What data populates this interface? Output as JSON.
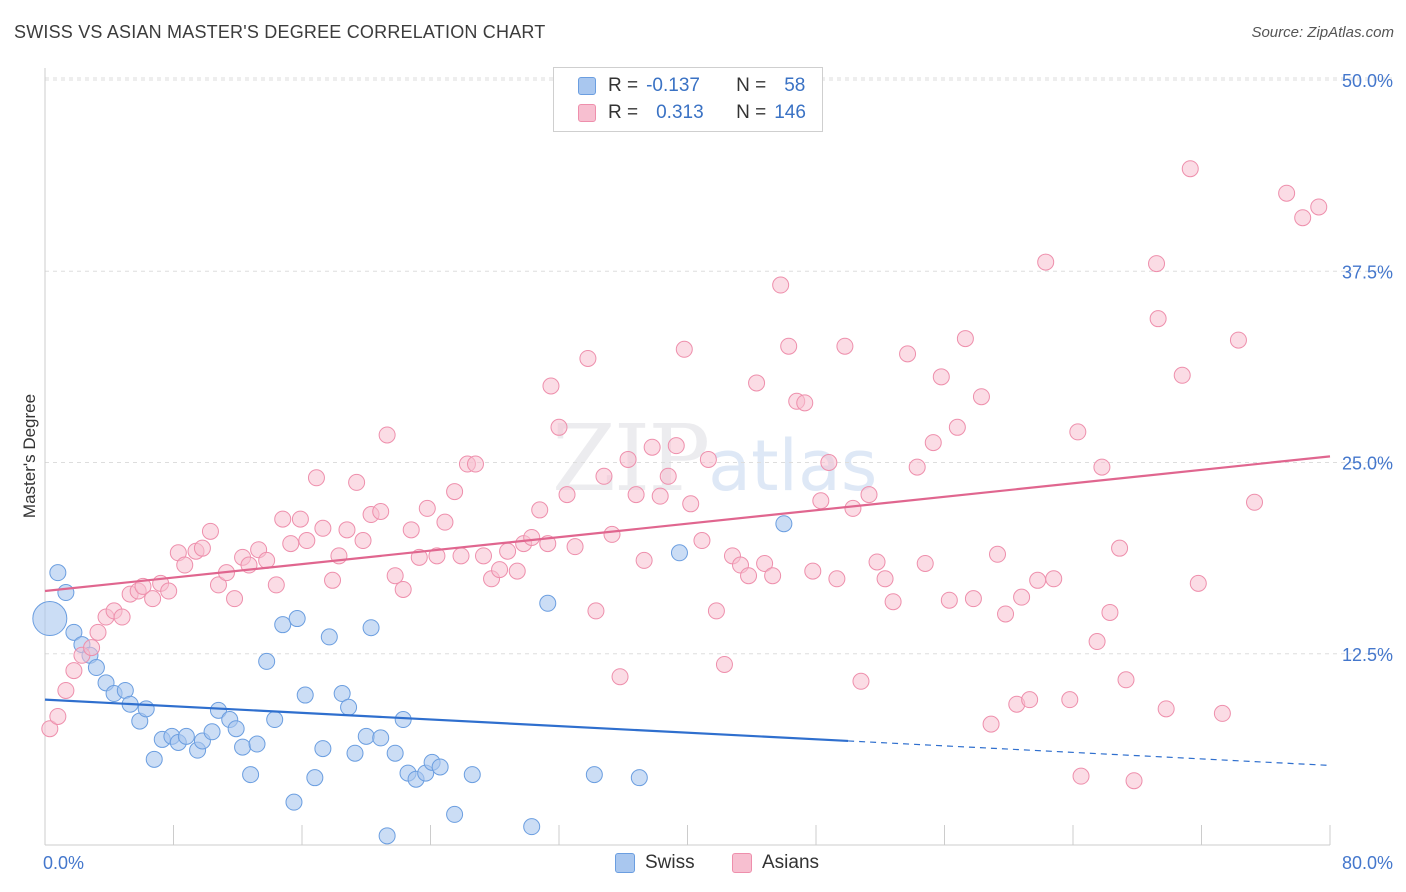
{
  "title": "SWISS VS ASIAN MASTER'S DEGREE CORRELATION CHART",
  "source": "Source: ZipAtlas.com",
  "watermark": {
    "zip": "ZIP",
    "atlas": "atlas"
  },
  "colors": {
    "swiss_fill": "#a9c7ef",
    "swiss_stroke": "#6b9ee0",
    "swiss_line": "#2f6fce",
    "asian_fill": "#f7bfd0",
    "asian_stroke": "#ee8fac",
    "asian_line": "#e0668f",
    "tick": "#4477cc",
    "grid": "#dddddd"
  },
  "legend": {
    "rows": [
      {
        "r_label": "R =",
        "r_value": "-0.137",
        "n_label": "N =",
        "n_value": "58"
      },
      {
        "r_label": "R =",
        "r_value": "0.313",
        "n_label": "N =",
        "n_value": "146"
      }
    ]
  },
  "bottom_legend": {
    "swiss": "Swiss",
    "asians": "Asians"
  },
  "chart_data": {
    "type": "scatter",
    "title": "SWISS VS ASIAN MASTER'S DEGREE CORRELATION CHART",
    "xlabel": "",
    "ylabel": "Master's Degree",
    "xlim": [
      0,
      80
    ],
    "ylim": [
      0,
      50
    ],
    "x_tick_labels": [
      "0.0%",
      "80.0%"
    ],
    "y_ticks": [
      12.5,
      25.0,
      37.5,
      50.0
    ],
    "y_tick_labels": [
      "12.5%",
      "25.0%",
      "37.5%",
      "50.0%"
    ],
    "grid": "horizontal dashed",
    "series": [
      {
        "name": "Swiss",
        "trend": {
          "x": [
            0,
            50,
            80
          ],
          "y": [
            9.5,
            6.8,
            5.2
          ],
          "dashed_from": 50
        },
        "points": [
          [
            0.3,
            14.8
          ],
          [
            0.8,
            17.8
          ],
          [
            1.3,
            16.5
          ],
          [
            1.8,
            13.9
          ],
          [
            2.3,
            13.1
          ],
          [
            2.8,
            12.4
          ],
          [
            3.2,
            11.6
          ],
          [
            3.8,
            10.6
          ],
          [
            4.3,
            9.9
          ],
          [
            5.0,
            10.1
          ],
          [
            5.3,
            9.2
          ],
          [
            5.9,
            8.1
          ],
          [
            6.3,
            8.9
          ],
          [
            6.8,
            5.6
          ],
          [
            7.3,
            6.9
          ],
          [
            7.9,
            7.1
          ],
          [
            8.3,
            6.7
          ],
          [
            8.8,
            7.1
          ],
          [
            9.5,
            6.2
          ],
          [
            9.8,
            6.8
          ],
          [
            10.4,
            7.4
          ],
          [
            10.8,
            8.8
          ],
          [
            11.5,
            8.2
          ],
          [
            11.9,
            7.6
          ],
          [
            12.3,
            6.4
          ],
          [
            12.8,
            4.6
          ],
          [
            13.2,
            6.6
          ],
          [
            13.8,
            12.0
          ],
          [
            14.3,
            8.2
          ],
          [
            14.8,
            14.4
          ],
          [
            15.5,
            2.8
          ],
          [
            15.7,
            14.8
          ],
          [
            16.2,
            9.8
          ],
          [
            16.8,
            4.4
          ],
          [
            17.3,
            6.3
          ],
          [
            17.7,
            13.6
          ],
          [
            18.5,
            9.9
          ],
          [
            18.9,
            9.0
          ],
          [
            19.3,
            6.0
          ],
          [
            20.0,
            7.1
          ],
          [
            20.3,
            14.2
          ],
          [
            20.9,
            7.0
          ],
          [
            21.3,
            0.6
          ],
          [
            21.8,
            6.0
          ],
          [
            22.3,
            8.2
          ],
          [
            22.6,
            4.7
          ],
          [
            23.1,
            4.3
          ],
          [
            23.7,
            4.7
          ],
          [
            24.1,
            5.4
          ],
          [
            24.6,
            5.1
          ],
          [
            25.5,
            2.0
          ],
          [
            26.6,
            4.6
          ],
          [
            30.3,
            1.2
          ],
          [
            31.3,
            15.8
          ],
          [
            34.2,
            4.6
          ],
          [
            37.0,
            4.4
          ],
          [
            39.5,
            19.1
          ],
          [
            46.0,
            21.0
          ]
        ]
      },
      {
        "name": "Asians",
        "trend": {
          "x": [
            0,
            80
          ],
          "y": [
            16.6,
            25.4
          ]
        },
        "points": [
          [
            0.3,
            7.6
          ],
          [
            0.8,
            8.4
          ],
          [
            1.3,
            10.1
          ],
          [
            1.8,
            11.4
          ],
          [
            2.3,
            12.4
          ],
          [
            2.9,
            12.9
          ],
          [
            3.3,
            13.9
          ],
          [
            3.8,
            14.9
          ],
          [
            4.3,
            15.3
          ],
          [
            4.8,
            14.9
          ],
          [
            5.3,
            16.4
          ],
          [
            5.8,
            16.6
          ],
          [
            6.1,
            16.9
          ],
          [
            6.7,
            16.1
          ],
          [
            7.2,
            17.1
          ],
          [
            7.7,
            16.6
          ],
          [
            8.3,
            19.1
          ],
          [
            8.7,
            18.3
          ],
          [
            9.4,
            19.2
          ],
          [
            9.8,
            19.4
          ],
          [
            10.3,
            20.5
          ],
          [
            10.8,
            17.0
          ],
          [
            11.3,
            17.8
          ],
          [
            11.8,
            16.1
          ],
          [
            12.3,
            18.8
          ],
          [
            12.7,
            18.3
          ],
          [
            13.3,
            19.3
          ],
          [
            13.8,
            18.6
          ],
          [
            14.4,
            17.0
          ],
          [
            14.8,
            21.3
          ],
          [
            15.3,
            19.7
          ],
          [
            15.9,
            21.3
          ],
          [
            16.3,
            19.9
          ],
          [
            16.9,
            24.0
          ],
          [
            17.3,
            20.7
          ],
          [
            17.9,
            17.3
          ],
          [
            18.3,
            18.9
          ],
          [
            18.8,
            20.6
          ],
          [
            19.4,
            23.7
          ],
          [
            19.8,
            19.9
          ],
          [
            20.3,
            21.6
          ],
          [
            20.9,
            21.8
          ],
          [
            21.3,
            26.8
          ],
          [
            21.8,
            17.6
          ],
          [
            22.3,
            16.7
          ],
          [
            22.8,
            20.6
          ],
          [
            23.3,
            18.8
          ],
          [
            23.8,
            22.0
          ],
          [
            24.4,
            18.9
          ],
          [
            24.9,
            21.1
          ],
          [
            25.5,
            23.1
          ],
          [
            25.9,
            18.9
          ],
          [
            26.3,
            24.9
          ],
          [
            26.8,
            24.9
          ],
          [
            27.3,
            18.9
          ],
          [
            27.8,
            17.4
          ],
          [
            28.3,
            18.0
          ],
          [
            28.8,
            19.2
          ],
          [
            29.4,
            17.9
          ],
          [
            29.8,
            19.7
          ],
          [
            30.3,
            20.1
          ],
          [
            30.8,
            21.9
          ],
          [
            31.3,
            19.7
          ],
          [
            31.5,
            30.0
          ],
          [
            32.0,
            27.3
          ],
          [
            32.5,
            22.9
          ],
          [
            33.0,
            19.5
          ],
          [
            33.8,
            31.8
          ],
          [
            34.3,
            15.3
          ],
          [
            34.8,
            24.1
          ],
          [
            35.3,
            20.3
          ],
          [
            35.8,
            11.0
          ],
          [
            36.3,
            25.2
          ],
          [
            36.8,
            22.9
          ],
          [
            37.3,
            18.6
          ],
          [
            37.8,
            26.0
          ],
          [
            38.3,
            22.8
          ],
          [
            38.8,
            24.1
          ],
          [
            39.3,
            26.1
          ],
          [
            39.8,
            32.4
          ],
          [
            40.2,
            22.3
          ],
          [
            40.9,
            19.9
          ],
          [
            41.3,
            25.2
          ],
          [
            41.8,
            15.3
          ],
          [
            42.3,
            11.8
          ],
          [
            42.8,
            18.9
          ],
          [
            43.3,
            18.3
          ],
          [
            43.8,
            17.6
          ],
          [
            44.3,
            30.2
          ],
          [
            44.8,
            18.4
          ],
          [
            45.3,
            17.6
          ],
          [
            45.8,
            36.6
          ],
          [
            46.3,
            32.6
          ],
          [
            46.8,
            29.0
          ],
          [
            47.3,
            28.9
          ],
          [
            47.8,
            17.9
          ],
          [
            48.3,
            22.5
          ],
          [
            48.8,
            25.0
          ],
          [
            49.3,
            17.4
          ],
          [
            49.8,
            32.6
          ],
          [
            50.3,
            22.0
          ],
          [
            50.8,
            10.7
          ],
          [
            51.3,
            22.9
          ],
          [
            51.8,
            18.5
          ],
          [
            52.3,
            17.4
          ],
          [
            52.8,
            15.9
          ],
          [
            53.7,
            32.1
          ],
          [
            54.3,
            24.7
          ],
          [
            54.8,
            18.4
          ],
          [
            55.3,
            26.3
          ],
          [
            55.8,
            30.6
          ],
          [
            56.3,
            16.0
          ],
          [
            56.8,
            27.3
          ],
          [
            57.3,
            33.1
          ],
          [
            57.8,
            16.1
          ],
          [
            58.3,
            29.3
          ],
          [
            58.9,
            7.9
          ],
          [
            59.3,
            19.0
          ],
          [
            59.8,
            15.1
          ],
          [
            60.5,
            9.2
          ],
          [
            60.8,
            16.2
          ],
          [
            61.3,
            9.5
          ],
          [
            61.8,
            17.3
          ],
          [
            62.3,
            38.1
          ],
          [
            62.8,
            17.4
          ],
          [
            63.8,
            9.5
          ],
          [
            64.3,
            27.0
          ],
          [
            64.5,
            4.5
          ],
          [
            65.5,
            13.3
          ],
          [
            65.8,
            24.7
          ],
          [
            66.3,
            15.2
          ],
          [
            66.9,
            19.4
          ],
          [
            67.3,
            10.8
          ],
          [
            67.8,
            4.2
          ],
          [
            69.2,
            38.0
          ],
          [
            69.3,
            34.4
          ],
          [
            69.8,
            8.9
          ],
          [
            70.8,
            30.7
          ],
          [
            71.3,
            44.2
          ],
          [
            71.8,
            17.1
          ],
          [
            73.3,
            8.6
          ],
          [
            74.3,
            33.0
          ],
          [
            75.3,
            22.4
          ],
          [
            77.3,
            42.6
          ],
          [
            78.3,
            41.0
          ],
          [
            79.3,
            41.7
          ]
        ]
      }
    ]
  }
}
